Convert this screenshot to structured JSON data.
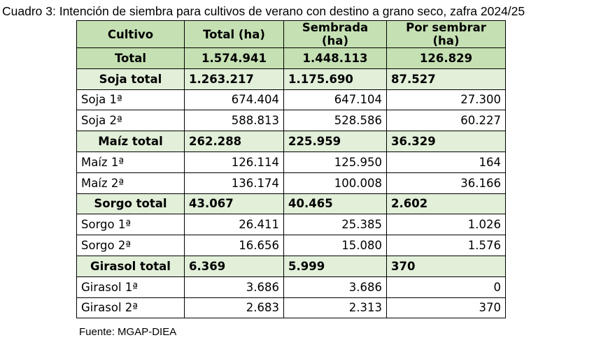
{
  "title": "Cuadro 3: Intención de siembra para cultivos de verano con destino a grano seco, zafra 2024/25",
  "headers": [
    "Cultivo",
    "Total (ha)",
    "Sembrada (ha)",
    "Por sembrar (ha)"
  ],
  "rows": [
    {
      "type": "total",
      "cells": [
        "Total",
        "1.574.941",
        "1.448.113",
        "126.829"
      ]
    },
    {
      "type": "sub",
      "cells": [
        "Soja total",
        "1.263.217",
        "1.175.690",
        "87.527"
      ]
    },
    {
      "type": "row",
      "cells": [
        "Soja 1ª",
        "674.404",
        "647.104",
        "27.300"
      ]
    },
    {
      "type": "row",
      "cells": [
        "Soja 2ª",
        "588.813",
        "528.586",
        "60.227"
      ]
    },
    {
      "type": "sub",
      "cells": [
        "Maíz total",
        "262.288",
        "225.959",
        "36.329"
      ]
    },
    {
      "type": "row",
      "cells": [
        "Maíz 1ª",
        "126.114",
        "125.950",
        "164"
      ]
    },
    {
      "type": "row",
      "cells": [
        "Maíz 2ª",
        "136.174",
        "100.008",
        "36.166"
      ]
    },
    {
      "type": "sub",
      "cells": [
        "Sorgo total",
        "43.067",
        "40.465",
        "2.602"
      ]
    },
    {
      "type": "row",
      "cells": [
        "Sorgo 1ª",
        "26.411",
        "25.385",
        "1.026"
      ]
    },
    {
      "type": "row",
      "cells": [
        "Sorgo 2ª",
        "16.656",
        "15.080",
        "1.576"
      ]
    },
    {
      "type": "sub",
      "cells": [
        "Girasol total",
        "6.369",
        "5.999",
        "370"
      ]
    },
    {
      "type": "row",
      "cells": [
        "Girasol 1ª",
        "3.686",
        "3.686",
        "0"
      ]
    },
    {
      "type": "row",
      "cells": [
        "Girasol 2ª",
        "2.683",
        "2.313",
        "370"
      ]
    }
  ],
  "source": "Fuente: MGAP-DIEA",
  "colors": {
    "header": "#c5e0b3",
    "subtotal": "#e2efd9"
  }
}
